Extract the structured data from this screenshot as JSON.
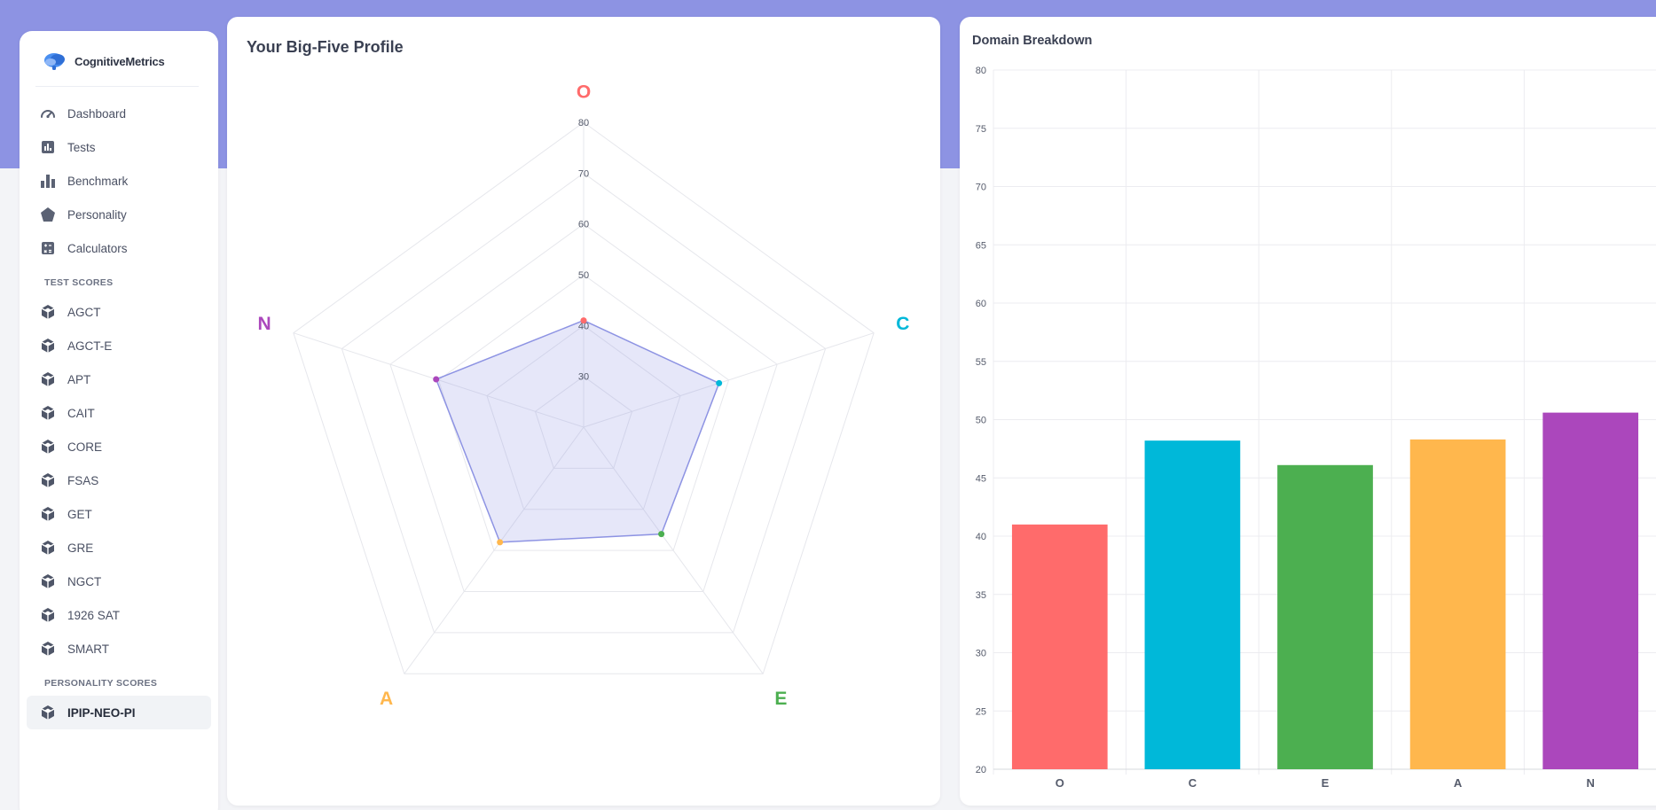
{
  "brand": {
    "name": "CognitiveMetrics"
  },
  "nav": {
    "main": [
      {
        "label": "Dashboard",
        "icon": "gauge-icon"
      },
      {
        "label": "Tests",
        "icon": "chart-icon"
      },
      {
        "label": "Benchmark",
        "icon": "bars-icon"
      },
      {
        "label": "Personality",
        "icon": "pentagon-icon"
      },
      {
        "label": "Calculators",
        "icon": "calculator-icon"
      }
    ],
    "test_scores_label": "TEST SCORES",
    "tests": [
      "AGCT",
      "AGCT-E",
      "APT",
      "CAIT",
      "CORE",
      "FSAS",
      "GET",
      "GRE",
      "NGCT",
      "1926 SAT",
      "SMART"
    ],
    "personality_scores_label": "PERSONALITY SCORES",
    "personality": [
      {
        "label": "IPIP-NEO-PI",
        "active": true
      }
    ]
  },
  "radar_card": {
    "title": "Your Big-Five Profile"
  },
  "bar_card": {
    "title": "Domain Breakdown"
  },
  "colors": {
    "O": "#ff6b6b",
    "C": "#00b8d9",
    "E": "#4caf50",
    "A": "#ffb74d",
    "N": "#ab47bc",
    "radar": "#8d93e3",
    "band": "#8d93e3"
  },
  "chart_data": [
    {
      "type": "radar",
      "title": "Your Big-Five Profile",
      "axes": [
        "O",
        "C",
        "E",
        "A",
        "N"
      ],
      "rlim": [
        20,
        80
      ],
      "ticks": [
        30,
        40,
        50,
        60,
        70,
        80
      ],
      "values": [
        41,
        48,
        46,
        48,
        50.5
      ]
    },
    {
      "type": "bar",
      "title": "Domain Breakdown",
      "categories": [
        "O",
        "C",
        "E",
        "A",
        "N"
      ],
      "values": [
        41,
        48.2,
        46.1,
        48.3,
        50.6
      ],
      "ylim": [
        20,
        80
      ],
      "yticks": [
        20,
        25,
        30,
        35,
        40,
        45,
        50,
        55,
        60,
        65,
        70,
        75,
        80
      ]
    }
  ]
}
